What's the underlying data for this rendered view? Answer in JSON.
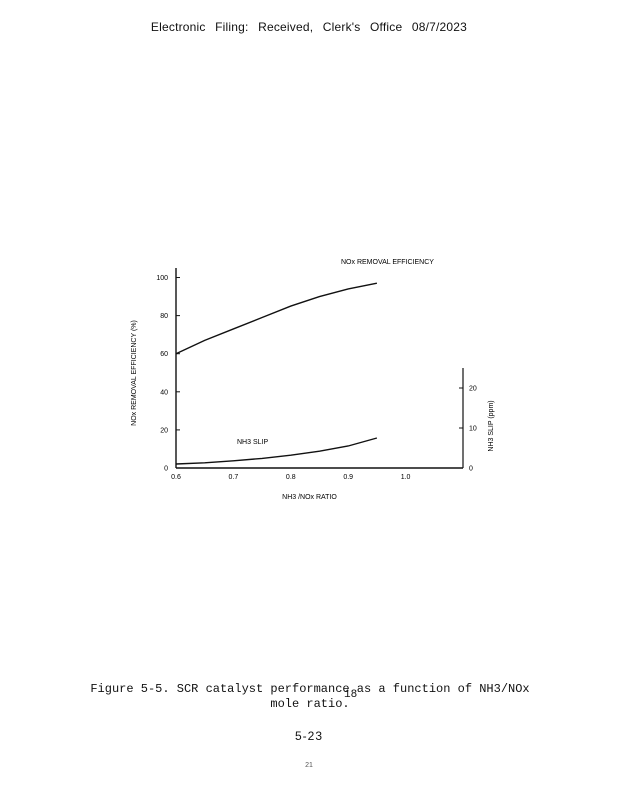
{
  "header": {
    "text": "Electronic Filing: Received, Clerk's Office 08/7/2023"
  },
  "chart_data": {
    "type": "line",
    "x": [
      0.6,
      0.65,
      0.7,
      0.75,
      0.8,
      0.85,
      0.9,
      0.95
    ],
    "xlim": [
      0.6,
      1.1
    ],
    "xticks": [
      "0.6",
      "0.7",
      "0.8",
      "0.9",
      "1.0"
    ],
    "xtick_values": [
      0.6,
      0.7,
      0.8,
      0.9,
      1.0
    ],
    "xlabel": "NH3 /NOx RATIO",
    "ylabel_left": "NOx REMOVAL EFFICIENCY (%)",
    "yticks_left": [
      "0",
      "20",
      "40",
      "60",
      "80",
      "100"
    ],
    "ytick_values_left": [
      0,
      20,
      40,
      60,
      80,
      100
    ],
    "ylim_left": [
      0,
      105
    ],
    "ylabel_right": "NH3 SLIP (ppm)",
    "yticks_right": [
      "0",
      "10",
      "20"
    ],
    "ytick_values_right": [
      0,
      10,
      20
    ],
    "ylim_right": [
      0,
      25
    ],
    "series": [
      {
        "name": "NOx REMOVAL EFFICIENCY",
        "axis": "left",
        "values": [
          60,
          67,
          73,
          79,
          85,
          90,
          94,
          97
        ]
      },
      {
        "name": "NH3 SLIP",
        "axis": "right",
        "values": [
          1,
          1.3,
          1.8,
          2.4,
          3.2,
          4.2,
          5.5,
          7.5
        ]
      }
    ]
  },
  "caption": {
    "line1": "Figure 5-5. SCR catalyst performance as a function of NH3/NOx",
    "line2": "mole ratio.",
    "overlap": "18"
  },
  "page": {
    "number": "5-23",
    "footer": "21"
  }
}
